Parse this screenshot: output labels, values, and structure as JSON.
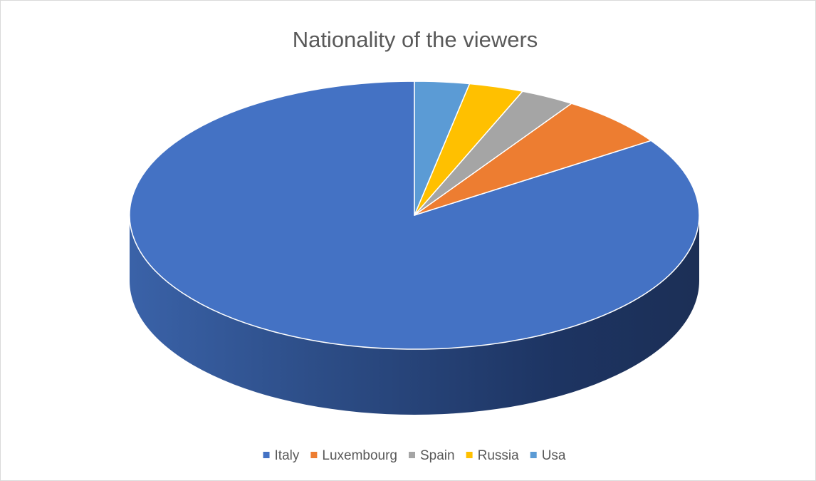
{
  "chart_data": {
    "type": "pie",
    "style": "3d",
    "title": "Nationality of the viewers",
    "categories": [
      "Italy",
      "Luxembourg",
      "Spain",
      "Russia",
      "Usa"
    ],
    "values": [
      84.4,
      6.3,
      3.1,
      3.1,
      3.1
    ],
    "colors": [
      "#4472C4",
      "#ED7D31",
      "#A5A5A5",
      "#FFC000",
      "#5B9BD5"
    ],
    "legend_position": "bottom"
  }
}
